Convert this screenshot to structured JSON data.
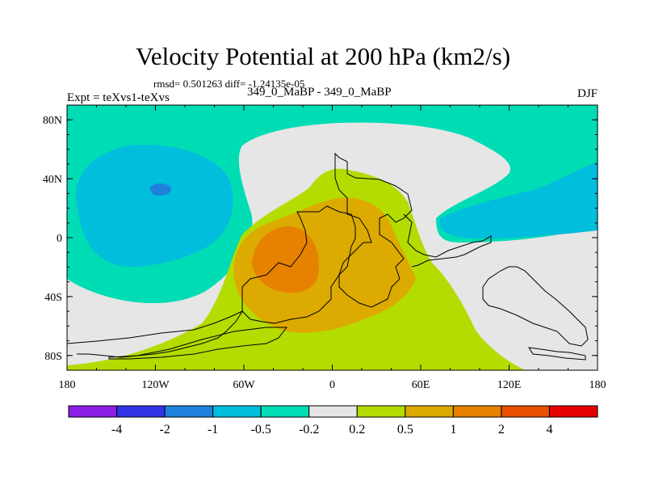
{
  "title": "Velocity Potential at 200 hPa (km2/s)",
  "stats": "rmsd= 0.501263 diff= -1.24135e-05",
  "experiment": "Expt = teXvs1-teXvs",
  "comparison": "349_0_MaBP - 349_0_MaBP",
  "season": "DJF",
  "x_axis": {
    "range": [
      -180,
      180
    ],
    "ticks": [
      {
        "value": -180,
        "label": "180"
      },
      {
        "value": -120,
        "label": "120W"
      },
      {
        "value": -60,
        "label": "60W"
      },
      {
        "value": 0,
        "label": "0"
      },
      {
        "value": 60,
        "label": "60E"
      },
      {
        "value": 120,
        "label": "120E"
      },
      {
        "value": 180,
        "label": "180"
      }
    ]
  },
  "y_axis": {
    "range": [
      -90,
      90
    ],
    "ticks": [
      {
        "value": 80,
        "label": "80N"
      },
      {
        "value": 40,
        "label": "40N"
      },
      {
        "value": 0,
        "label": "0"
      },
      {
        "value": -40,
        "label": "40S"
      },
      {
        "value": -80,
        "label": "80S"
      }
    ]
  },
  "colorbar": {
    "colors": [
      "#8c1ee6",
      "#3232e6",
      "#1e82dc",
      "#00bedc",
      "#00dcb4",
      "#e6e6e6",
      "#b4dc00",
      "#dcaa00",
      "#e68200",
      "#e65000",
      "#e60000"
    ],
    "labels": [
      "-4",
      "-2",
      "-1",
      "-0.5",
      "-0.2",
      "0.2",
      "0.5",
      "1",
      "2",
      "4"
    ]
  },
  "fills": {
    "background": "#00dcb4",
    "neutral": "#e6e6e6",
    "neg1": "#00bedc",
    "neg2": "#1e82dc",
    "pos1": "#b4dc00",
    "pos2": "#dcaa00",
    "pos3": "#e68200"
  }
}
